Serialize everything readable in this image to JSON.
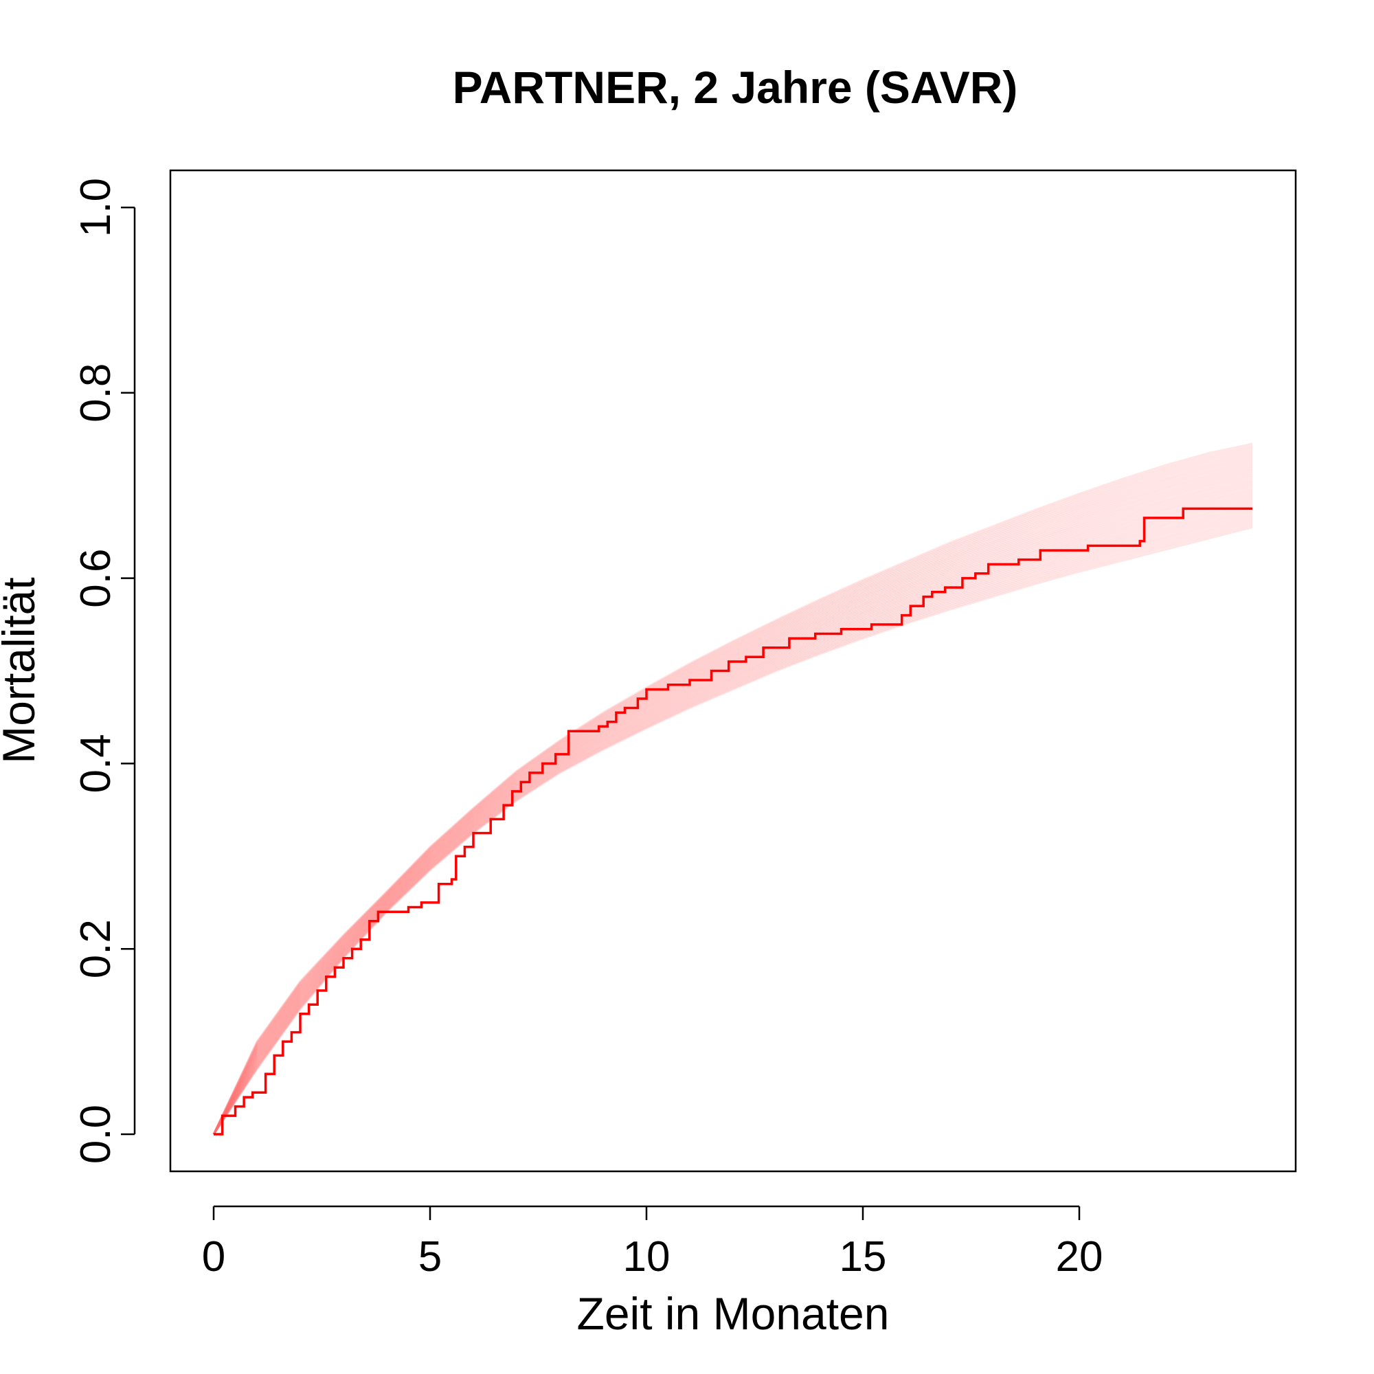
{
  "chart_data": {
    "type": "line",
    "title": "PARTNER, 2 Jahre (SAVR)",
    "xlabel": "Zeit in Monaten",
    "ylabel": "Mortalität",
    "xlim": [
      -1,
      25
    ],
    "ylim": [
      -0.04,
      1.04
    ],
    "x_ticks": [
      0,
      5,
      10,
      15,
      20
    ],
    "x_tick_labels": [
      "0",
      "5",
      "10",
      "15",
      "20"
    ],
    "y_ticks": [
      0.0,
      0.2,
      0.4,
      0.6,
      0.8,
      1.0
    ],
    "y_tick_labels": [
      "0.0",
      "0.2",
      "0.4",
      "0.6",
      "0.8",
      "1.0"
    ],
    "grid": false,
    "legend": "none",
    "colors": {
      "observed": "#ff0000",
      "simulated": "#ff7070"
    },
    "simulated_band": {
      "x": [
        0,
        1,
        2,
        3,
        4,
        5,
        6,
        7,
        8,
        9,
        10,
        11,
        12,
        13,
        14,
        15,
        16,
        17,
        18,
        19,
        20,
        21,
        22,
        23,
        24
      ],
      "lower": [
        0.0,
        0.07,
        0.135,
        0.19,
        0.24,
        0.285,
        0.325,
        0.36,
        0.39,
        0.415,
        0.438,
        0.46,
        0.48,
        0.5,
        0.518,
        0.535,
        0.551,
        0.566,
        0.58,
        0.594,
        0.607,
        0.619,
        0.631,
        0.643,
        0.655
      ],
      "upper": [
        0.0,
        0.1,
        0.165,
        0.215,
        0.262,
        0.31,
        0.352,
        0.392,
        0.425,
        0.455,
        0.482,
        0.508,
        0.532,
        0.555,
        0.577,
        0.598,
        0.618,
        0.638,
        0.656,
        0.674,
        0.691,
        0.707,
        0.722,
        0.735,
        0.745
      ],
      "n_curves": 40
    },
    "observed": {
      "x": [
        0,
        0.15,
        0.2,
        0.5,
        0.7,
        0.9,
        1.2,
        1.4,
        1.6,
        1.8,
        2.0,
        2.2,
        2.4,
        2.6,
        2.8,
        3.0,
        3.2,
        3.4,
        3.6,
        3.8,
        4.0,
        4.5,
        4.8,
        5.2,
        5.5,
        5.6,
        5.8,
        6.0,
        6.4,
        6.7,
        6.9,
        7.1,
        7.3,
        7.6,
        7.9,
        8.2,
        8.6,
        8.9,
        9.1,
        9.3,
        9.5,
        9.8,
        10.0,
        10.5,
        11.0,
        11.5,
        11.9,
        12.3,
        12.7,
        13.3,
        13.9,
        14.5,
        15.2,
        15.9,
        16.1,
        16.4,
        16.6,
        16.9,
        17.3,
        17.6,
        17.9,
        18.6,
        19.1,
        20.2,
        21.4,
        21.5,
        22.4,
        24.0
      ],
      "y": [
        0,
        0.0,
        0.02,
        0.03,
        0.04,
        0.045,
        0.065,
        0.085,
        0.1,
        0.11,
        0.13,
        0.14,
        0.155,
        0.17,
        0.18,
        0.19,
        0.2,
        0.21,
        0.23,
        0.24,
        0.24,
        0.245,
        0.25,
        0.27,
        0.275,
        0.3,
        0.31,
        0.325,
        0.34,
        0.355,
        0.37,
        0.38,
        0.39,
        0.4,
        0.41,
        0.435,
        0.435,
        0.44,
        0.445,
        0.455,
        0.46,
        0.47,
        0.48,
        0.485,
        0.49,
        0.5,
        0.51,
        0.515,
        0.525,
        0.535,
        0.54,
        0.545,
        0.55,
        0.56,
        0.57,
        0.58,
        0.585,
        0.59,
        0.6,
        0.605,
        0.615,
        0.62,
        0.63,
        0.635,
        0.64,
        0.665,
        0.675,
        0.675
      ]
    }
  }
}
